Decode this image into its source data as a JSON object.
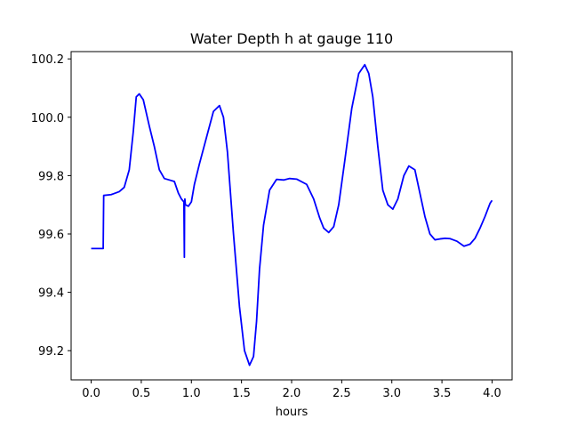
{
  "chart_data": {
    "type": "line",
    "title": "Water Depth h at gauge 110",
    "xlabel": "hours",
    "ylabel": "",
    "xlim": [
      -0.2,
      4.2
    ],
    "ylim": [
      99.1,
      100.225
    ],
    "xticks": [
      0.0,
      0.5,
      1.0,
      1.5,
      2.0,
      2.5,
      3.0,
      3.5,
      4.0
    ],
    "xtick_labels": [
      "0.0",
      "0.5",
      "1.0",
      "1.5",
      "2.0",
      "2.5",
      "3.0",
      "3.5",
      "4.0"
    ],
    "yticks": [
      99.2,
      99.4,
      99.6,
      99.8,
      100.0,
      100.2
    ],
    "ytick_labels": [
      "99.2",
      "99.4",
      "99.6",
      "99.8",
      "100.0",
      "100.2"
    ],
    "grid": false,
    "series": [
      {
        "color": "#0000ff",
        "x": [
          0.0,
          0.12,
          0.125,
          0.2,
          0.28,
          0.33,
          0.38,
          0.42,
          0.45,
          0.48,
          0.52,
          0.58,
          0.63,
          0.68,
          0.73,
          0.78,
          0.83,
          0.87,
          0.9,
          0.925,
          0.93,
          0.932,
          0.935,
          0.94,
          0.97,
          1.0,
          1.03,
          1.08,
          1.15,
          1.22,
          1.28,
          1.32,
          1.36,
          1.42,
          1.48,
          1.53,
          1.58,
          1.62,
          1.65,
          1.68,
          1.72,
          1.78,
          1.85,
          1.92,
          1.98,
          2.05,
          2.15,
          2.22,
          2.28,
          2.32,
          2.37,
          2.42,
          2.47,
          2.53,
          2.6,
          2.67,
          2.73,
          2.77,
          2.81,
          2.86,
          2.91,
          2.96,
          3.01,
          3.06,
          3.12,
          3.17,
          3.23,
          3.28,
          3.33,
          3.38,
          3.43,
          3.48,
          3.53,
          3.58,
          3.65,
          3.72,
          3.78,
          3.83,
          3.88,
          3.93,
          3.98,
          4.0
        ],
        "y": [
          99.55,
          99.55,
          99.732,
          99.735,
          99.745,
          99.76,
          99.82,
          99.95,
          100.07,
          100.08,
          100.06,
          99.97,
          99.9,
          99.82,
          99.79,
          99.785,
          99.78,
          99.74,
          99.72,
          99.71,
          99.52,
          99.7,
          99.72,
          99.7,
          99.695,
          99.71,
          99.77,
          99.84,
          99.93,
          100.02,
          100.04,
          100.0,
          99.88,
          99.6,
          99.35,
          99.2,
          99.15,
          99.18,
          99.3,
          99.48,
          99.63,
          99.75,
          99.787,
          99.785,
          99.79,
          99.788,
          99.77,
          99.72,
          99.655,
          99.62,
          99.605,
          99.625,
          99.7,
          99.85,
          100.03,
          100.15,
          100.18,
          100.15,
          100.07,
          99.9,
          99.75,
          99.7,
          99.685,
          99.72,
          99.8,
          99.833,
          99.82,
          99.74,
          99.66,
          99.6,
          99.58,
          99.583,
          99.585,
          99.584,
          99.575,
          99.558,
          99.565,
          99.585,
          99.62,
          99.66,
          99.705,
          99.715
        ]
      }
    ]
  }
}
